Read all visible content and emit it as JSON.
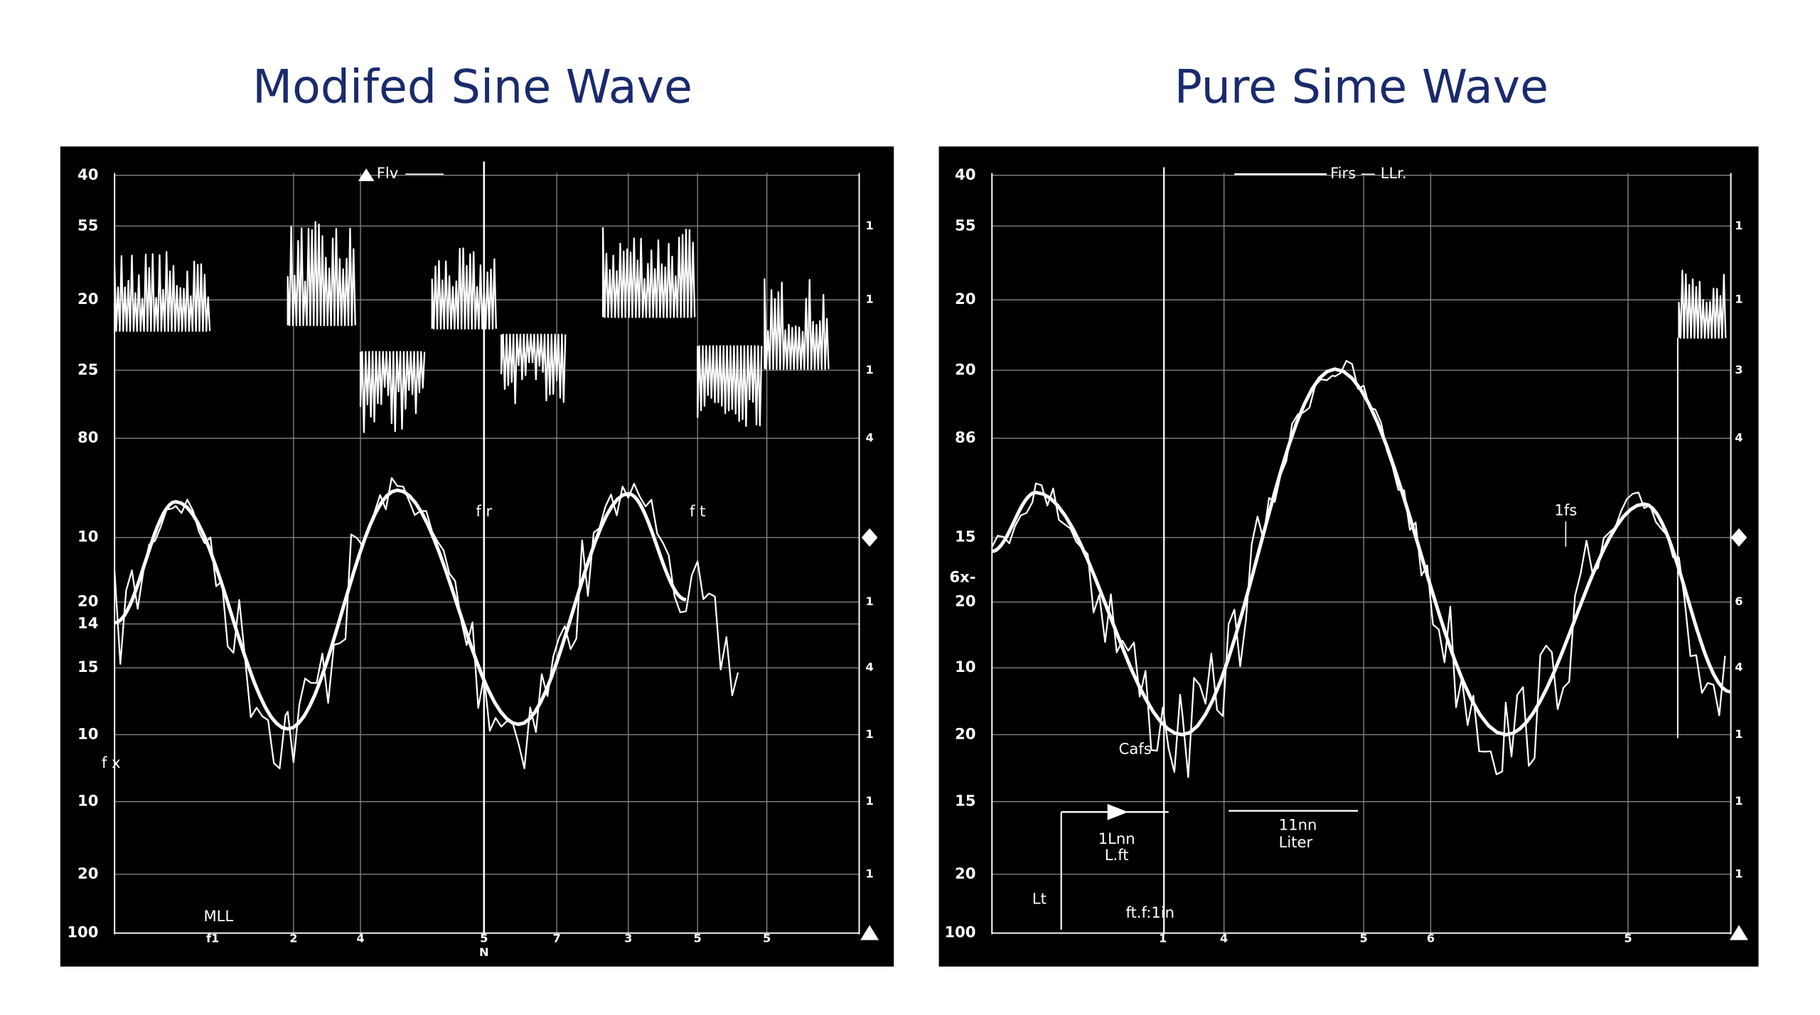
{
  "left": {
    "title": "Modifed Sine Wave",
    "y_labels_left": [
      "40",
      "55",
      "20",
      "25",
      "80",
      "10",
      "20",
      "14",
      "15",
      "10",
      "10",
      "20",
      "100"
    ],
    "y_labels_right": [
      "1",
      "1",
      "1",
      "4",
      "1",
      "4",
      "1",
      "1",
      "1"
    ],
    "x_labels": [
      "f1",
      "2",
      "4",
      "5",
      "7",
      "3",
      "5",
      "5"
    ],
    "x_sub_label": "N",
    "annotations": [
      "Flv",
      "f r",
      "f t",
      "f x",
      "MLL"
    ]
  },
  "right": {
    "title": "Pure Sime Wave",
    "y_labels_left": [
      "40",
      "55",
      "20",
      "20",
      "86",
      "15",
      "6x-",
      "20",
      "10",
      "20",
      "15",
      "20",
      "100"
    ],
    "y_labels_right": [
      "1",
      "1",
      "3",
      "4",
      "6",
      "4",
      "1",
      "1",
      "1"
    ],
    "x_labels": [
      "1",
      "4",
      "5",
      "6",
      "5"
    ],
    "annotations": [
      "Firs — LLr.",
      "1fs",
      "Cafs",
      "1Lnn",
      "L.ft",
      "11nn",
      "Liter",
      "Lt",
      "ft.f:1in"
    ]
  }
}
